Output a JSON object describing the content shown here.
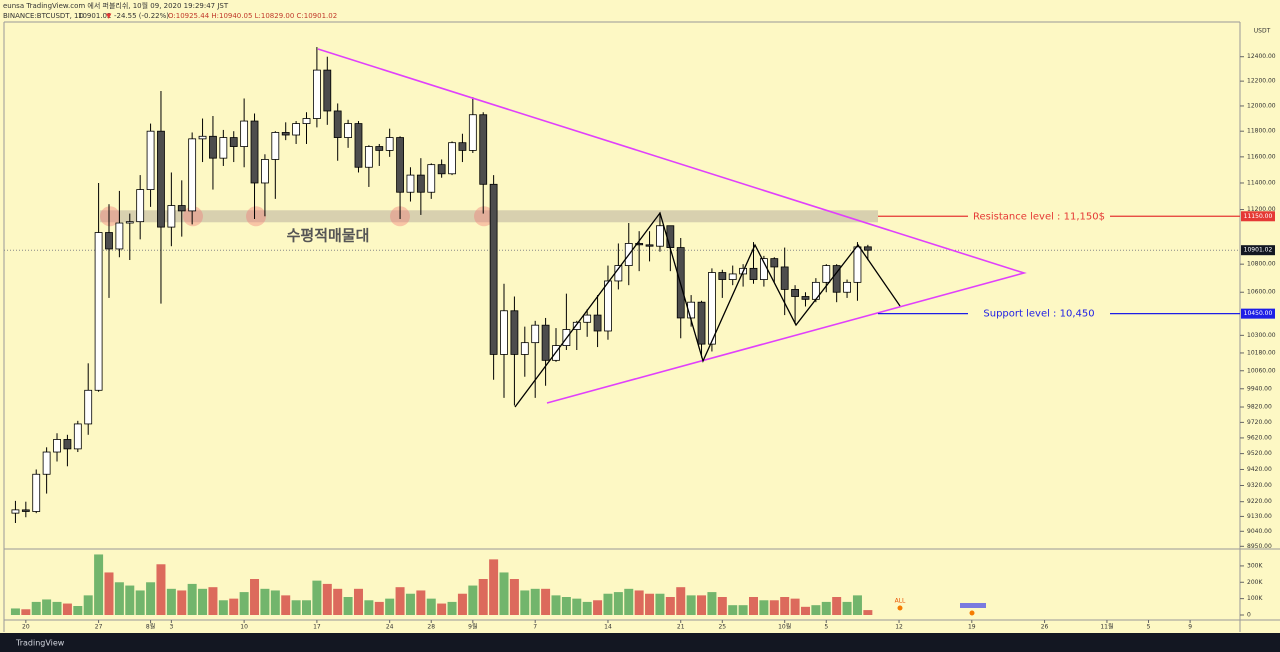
{
  "header": {
    "line1": "eunsa TradingView.com 에서 퍼블리쉬, 10월 09, 2020 19:29:47 JST",
    "symbol": "BINANCE:BTCUSDT, 1D",
    "last": "10901.02",
    "arrow": "▼",
    "change": "-24.55 (-0.22%)",
    "ohlc": "O:10925.44 H:10940.05 L:10829.00 C:10901.02"
  },
  "chart_data": {
    "type": "candlestick",
    "currency": "USDT",
    "log_scale": true,
    "ylim": [
      8940,
      12690
    ],
    "yticks": [
      {
        "value": 12400,
        "label": "12400.00"
      },
      {
        "value": 12200,
        "label": "12200.00"
      },
      {
        "value": 12000,
        "label": "12000.00"
      },
      {
        "value": 11800,
        "label": "11800.00"
      },
      {
        "value": 11600,
        "label": "11600.00"
      },
      {
        "value": 11400,
        "label": "11400.00"
      },
      {
        "value": 11200,
        "label": "11200.00"
      },
      {
        "value": 10800,
        "label": "10800.00"
      },
      {
        "value": 10600,
        "label": "10600.00"
      },
      {
        "value": 10300,
        "label": "10300.00"
      },
      {
        "value": 10180,
        "label": "10180.00"
      },
      {
        "value": 10060,
        "label": "10060.00"
      },
      {
        "value": 9940,
        "label": "9940.00"
      },
      {
        "value": 9820,
        "label": "9820.00"
      },
      {
        "value": 9720,
        "label": "9720.00"
      },
      {
        "value": 9620,
        "label": "9620.00"
      },
      {
        "value": 9520,
        "label": "9520.00"
      },
      {
        "value": 9420,
        "label": "9420.00"
      },
      {
        "value": 9320,
        "label": "9320.00"
      },
      {
        "value": 9220,
        "label": "9220.00"
      },
      {
        "value": 9130,
        "label": "9130.00"
      },
      {
        "value": 9040,
        "label": "9040.00"
      },
      {
        "value": 8950,
        "label": "8950.00"
      }
    ],
    "xlim": [
      -1.1,
      117.8
    ],
    "xticks": [
      {
        "value": 1,
        "label": "20"
      },
      {
        "value": 8,
        "label": "27"
      },
      {
        "value": 13,
        "label": "8월"
      },
      {
        "value": 15,
        "label": "3"
      },
      {
        "value": 22,
        "label": "10"
      },
      {
        "value": 29,
        "label": "17"
      },
      {
        "value": 36,
        "label": "24"
      },
      {
        "value": 40,
        "label": "28"
      },
      {
        "value": 44,
        "label": "9월"
      },
      {
        "value": 50,
        "label": "7"
      },
      {
        "value": 57,
        "label": "14"
      },
      {
        "value": 64,
        "label": "21"
      },
      {
        "value": 68,
        "label": "25"
      },
      {
        "value": 74,
        "label": "10월"
      },
      {
        "value": 78,
        "label": "5"
      },
      {
        "value": 85,
        "label": "12"
      },
      {
        "value": 92,
        "label": "19"
      },
      {
        "value": 99,
        "label": "26"
      },
      {
        "value": 105,
        "label": "11월"
      },
      {
        "value": 109,
        "label": "5"
      },
      {
        "value": 113,
        "label": "9"
      }
    ],
    "up_color": "#ffffff",
    "down_color": "#4d4d4d",
    "candles": [
      [
        9150,
        9225,
        9090,
        9170
      ],
      [
        9170,
        9220,
        9125,
        9160
      ],
      [
        9160,
        9420,
        9150,
        9390
      ],
      [
        9390,
        9560,
        9270,
        9530
      ],
      [
        9530,
        9650,
        9470,
        9610
      ],
      [
        9610,
        9640,
        9440,
        9550
      ],
      [
        9550,
        9730,
        9530,
        9710
      ],
      [
        9710,
        10110,
        9640,
        9930
      ],
      [
        9930,
        11400,
        9920,
        11030
      ],
      [
        11030,
        11240,
        10560,
        10910
      ],
      [
        10910,
        11340,
        10850,
        11100
      ],
      [
        11100,
        11170,
        10830,
        11110
      ],
      [
        11110,
        11460,
        10980,
        11350
      ],
      [
        11350,
        11860,
        11220,
        11800
      ],
      [
        11800,
        12120,
        10520,
        11070
      ],
      [
        11070,
        11480,
        10930,
        11230
      ],
      [
        11230,
        11420,
        11000,
        11190
      ],
      [
        11190,
        11790,
        11090,
        11740
      ],
      [
        11740,
        11900,
        11560,
        11760
      ],
      [
        11760,
        11920,
        11350,
        11590
      ],
      [
        11590,
        11810,
        11530,
        11750
      ],
      [
        11750,
        11800,
        11560,
        11680
      ],
      [
        11680,
        12060,
        11520,
        11880
      ],
      [
        11880,
        11940,
        11130,
        11400
      ],
      [
        11400,
        11620,
        11150,
        11580
      ],
      [
        11580,
        11800,
        11280,
        11790
      ],
      [
        11790,
        11870,
        11730,
        11770
      ],
      [
        11770,
        11880,
        11700,
        11860
      ],
      [
        11860,
        11950,
        11700,
        11900
      ],
      [
        11900,
        12480,
        11830,
        12290
      ],
      [
        12290,
        12400,
        11850,
        11960
      ],
      [
        11960,
        12020,
        11570,
        11750
      ],
      [
        11750,
        11890,
        11670,
        11860
      ],
      [
        11860,
        11880,
        11480,
        11520
      ],
      [
        11520,
        11690,
        11370,
        11680
      ],
      [
        11680,
        11700,
        11530,
        11650
      ],
      [
        11650,
        11820,
        11600,
        11750
      ],
      [
        11750,
        11760,
        11130,
        11330
      ],
      [
        11330,
        11520,
        11260,
        11460
      ],
      [
        11460,
        11590,
        11160,
        11330
      ],
      [
        11330,
        11550,
        11280,
        11540
      ],
      [
        11540,
        11580,
        11440,
        11470
      ],
      [
        11470,
        11720,
        11460,
        11710
      ],
      [
        11710,
        11780,
        11560,
        11650
      ],
      [
        11650,
        12070,
        11630,
        11930
      ],
      [
        11930,
        11950,
        11170,
        11390
      ],
      [
        11390,
        11460,
        10000,
        10170
      ],
      [
        10170,
        10660,
        9880,
        10470
      ],
      [
        10470,
        10570,
        9830,
        10170
      ],
      [
        10170,
        10360,
        10020,
        10250
      ],
      [
        10250,
        10400,
        9880,
        10370
      ],
      [
        10370,
        10420,
        9960,
        10130
      ],
      [
        10130,
        10350,
        10120,
        10230
      ],
      [
        10230,
        10590,
        10200,
        10340
      ],
      [
        10340,
        10400,
        10200,
        10390
      ],
      [
        10390,
        10480,
        10290,
        10440
      ],
      [
        10440,
        10580,
        10220,
        10330
      ],
      [
        10330,
        10790,
        10270,
        10680
      ],
      [
        10680,
        10950,
        10620,
        10790
      ],
      [
        10790,
        11100,
        10650,
        10950
      ],
      [
        10950,
        11040,
        10750,
        10940
      ],
      [
        10940,
        11040,
        10820,
        10930
      ],
      [
        10930,
        11180,
        10890,
        11080
      ],
      [
        11080,
        11080,
        10750,
        10920
      ],
      [
        10920,
        10990,
        10280,
        10420
      ],
      [
        10420,
        10580,
        10360,
        10530
      ],
      [
        10530,
        10540,
        10150,
        10240
      ],
      [
        10240,
        10770,
        10190,
        10740
      ],
      [
        10740,
        10760,
        10560,
        10690
      ],
      [
        10690,
        10790,
        10650,
        10730
      ],
      [
        10730,
        10800,
        10640,
        10770
      ],
      [
        10770,
        10960,
        10660,
        10690
      ],
      [
        10690,
        10860,
        10640,
        10840
      ],
      [
        10840,
        10850,
        10670,
        10780
      ],
      [
        10780,
        10920,
        10440,
        10620
      ],
      [
        10620,
        10650,
        10380,
        10570
      ],
      [
        10570,
        10600,
        10500,
        10550
      ],
      [
        10550,
        10700,
        10530,
        10670
      ],
      [
        10670,
        10800,
        10600,
        10790
      ],
      [
        10790,
        10800,
        10530,
        10600
      ],
      [
        10600,
        10690,
        10560,
        10670
      ],
      [
        10670,
        10960,
        10540,
        10925
      ],
      [
        10925.44,
        10940.05,
        10829.0,
        10901.02
      ]
    ],
    "volume": {
      "up_color": "#72b56c",
      "down_color": "#dc6a5c",
      "ylim": [
        0,
        385
      ],
      "yticks": [
        0,
        {
          "value": 100,
          "label": "100K"
        },
        {
          "value": 200,
          "label": "200K"
        },
        {
          "value": 300,
          "label": "300K"
        }
      ],
      "values": [
        40,
        35,
        80,
        95,
        80,
        70,
        55,
        120,
        370,
        260,
        200,
        180,
        150,
        200,
        310,
        160,
        150,
        190,
        160,
        170,
        90,
        100,
        140,
        220,
        160,
        150,
        120,
        90,
        90,
        210,
        190,
        160,
        110,
        160,
        90,
        80,
        100,
        170,
        130,
        150,
        100,
        70,
        80,
        130,
        180,
        220,
        340,
        260,
        220,
        150,
        160,
        160,
        120,
        110,
        100,
        80,
        90,
        130,
        140,
        160,
        150,
        130,
        130,
        110,
        170,
        120,
        120,
        140,
        110,
        60,
        60,
        110,
        90,
        90,
        110,
        100,
        50,
        60,
        80,
        110,
        80,
        120,
        30
      ]
    },
    "price_tags": [
      {
        "value": 11150,
        "label": "11150.00",
        "color": "#e53935"
      },
      {
        "value": 10901.02,
        "label": "10901.02",
        "color": "#131722"
      },
      {
        "value": 10450,
        "label": "10450.00",
        "color": "#1e1ee6"
      }
    ],
    "annotations": {
      "zone_label": "수평적매물대",
      "resistance": {
        "value": 11150,
        "label": "Resistance level : 11,150$",
        "color": "#e53935"
      },
      "support": {
        "value": 10450,
        "label": "Support level : 10,450",
        "color": "#1e1ee6"
      }
    },
    "marker": "ALL"
  },
  "footer": "TradingView"
}
